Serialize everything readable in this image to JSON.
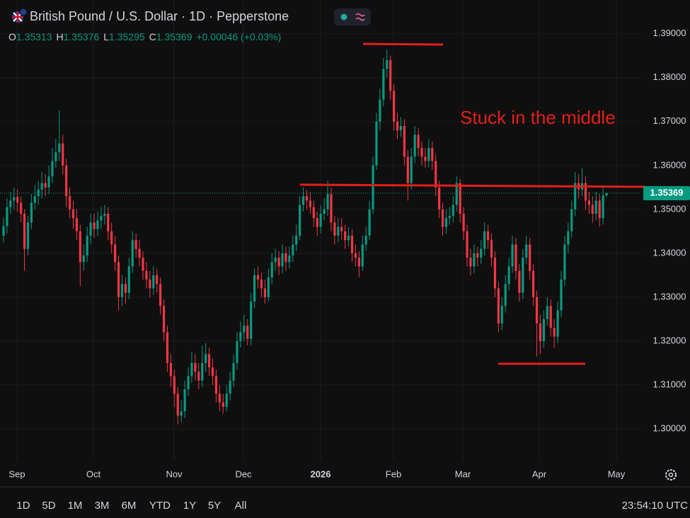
{
  "chart_data": {
    "type": "candlestick",
    "title": "British Pound / U.S. Dollar · 1D · Pepperstone",
    "legend": {
      "items": [
        {
          "label": "O",
          "value": 1.35313
        },
        {
          "label": "H",
          "value": 1.35376
        },
        {
          "label": "L",
          "value": 1.35295
        },
        {
          "label": "C",
          "value": 1.35369
        }
      ],
      "change": "+0.00046 (+0.03%)"
    },
    "annotation": "Stuck in the middle",
    "up_color": "#089981",
    "down_color": "#f23645",
    "ylim": [
      1.2929,
      1.3977
    ],
    "yticks": [
      {
        "value": 1.3,
        "label": "1.30000"
      },
      {
        "value": 1.31,
        "label": "1.31000"
      },
      {
        "value": 1.32,
        "label": "1.32000"
      },
      {
        "value": 1.33,
        "label": "1.33000"
      },
      {
        "value": 1.34,
        "label": "1.34000"
      },
      {
        "value": 1.35,
        "label": "1.35000"
      },
      {
        "value": 1.36,
        "label": "1.36000"
      },
      {
        "value": 1.37,
        "label": "1.37000"
      },
      {
        "value": 1.38,
        "label": "1.38000"
      },
      {
        "value": 1.39,
        "label": "1.39000"
      }
    ],
    "xticks": [
      "Sep",
      "Oct",
      "Nov",
      "Dec",
      "2026",
      "Feb",
      "Mar",
      "Apr",
      "May"
    ],
    "grid": true,
    "open": [
      1.344,
      1.3462,
      1.3505,
      1.352,
      1.3528,
      1.3515,
      1.349,
      1.341,
      1.347,
      1.3515,
      1.353,
      1.3545,
      1.356,
      1.355,
      1.3575,
      1.361,
      1.363,
      1.365,
      1.36,
      1.353,
      1.35,
      1.348,
      1.345,
      1.338,
      1.3395,
      1.344,
      1.347,
      1.3455,
      1.3475,
      1.3485,
      1.349,
      1.345,
      1.342,
      1.338,
      1.33,
      1.333,
      1.331,
      1.337,
      1.343,
      1.341,
      1.339,
      1.336,
      1.334,
      1.332,
      1.335,
      1.333,
      1.328,
      1.322,
      1.315,
      1.312,
      1.308,
      1.303,
      1.304,
      1.309,
      1.312,
      1.315,
      1.313,
      1.311,
      1.315,
      1.317,
      1.314,
      1.312,
      1.308,
      1.306,
      1.305,
      1.308,
      1.311,
      1.315,
      1.32,
      1.322,
      1.3235,
      1.3205,
      1.329,
      1.335,
      1.334,
      1.332,
      1.33,
      1.3345,
      1.338,
      1.339,
      1.337,
      1.34,
      1.338,
      1.3395,
      1.342,
      1.344,
      1.351,
      1.353,
      1.352,
      1.3505,
      1.348,
      1.346,
      1.349,
      1.35,
      1.3535,
      1.347,
      1.344,
      1.346,
      1.345,
      1.343,
      1.344,
      1.34,
      1.339,
      1.337,
      1.342,
      1.344,
      1.35,
      1.36,
      1.37,
      1.375,
      1.382,
      1.384,
      1.377,
      1.37,
      1.368,
      1.369,
      1.362,
      1.356,
      1.362,
      1.367,
      1.364,
      1.362,
      1.361,
      1.364,
      1.361,
      1.355,
      1.35,
      1.346,
      1.348,
      1.3485,
      1.351,
      1.356,
      1.349,
      1.345,
      1.339,
      1.337,
      1.34,
      1.339,
      1.341,
      1.345,
      1.343,
      1.339,
      1.332,
      1.324,
      1.328,
      1.333,
      1.337,
      1.342,
      1.336,
      1.331,
      1.339,
      1.342,
      1.336,
      1.33,
      1.324,
      1.32,
      1.325,
      1.328,
      1.323,
      1.321,
      1.327,
      1.334,
      1.342,
      1.345,
      1.35,
      1.356,
      1.3545,
      1.356,
      1.352,
      1.351,
      1.349,
      1.352,
      1.348,
      1.35313
    ],
    "high": [
      1.348,
      1.3525,
      1.354,
      1.355,
      1.3545,
      1.353,
      1.35,
      1.3485,
      1.3535,
      1.3555,
      1.3565,
      1.3585,
      1.358,
      1.36,
      1.364,
      1.366,
      1.3725,
      1.367,
      1.3615,
      1.355,
      1.352,
      1.35,
      1.3465,
      1.342,
      1.346,
      1.349,
      1.349,
      1.3495,
      1.3505,
      1.351,
      1.3505,
      1.347,
      1.344,
      1.3395,
      1.335,
      1.3345,
      1.339,
      1.345,
      1.3445,
      1.343,
      1.3405,
      1.338,
      1.336,
      1.337,
      1.3365,
      1.3345,
      1.3295,
      1.3235,
      1.317,
      1.3135,
      1.3095,
      1.3065,
      1.311,
      1.314,
      1.3175,
      1.317,
      1.315,
      1.319,
      1.3195,
      1.3185,
      1.316,
      1.3135,
      1.31,
      1.308,
      1.31,
      1.313,
      1.317,
      1.322,
      1.3245,
      1.326,
      1.325,
      1.331,
      1.3365,
      1.337,
      1.3355,
      1.334,
      1.3365,
      1.34,
      1.341,
      1.3405,
      1.342,
      1.3415,
      1.3415,
      1.344,
      1.3465,
      1.353,
      1.355,
      1.3545,
      1.354,
      1.352,
      1.3495,
      1.351,
      1.3525,
      1.3565,
      1.355,
      1.3485,
      1.348,
      1.348,
      1.3465,
      1.346,
      1.3455,
      1.342,
      1.3405,
      1.344,
      1.346,
      1.352,
      1.362,
      1.372,
      1.3775,
      1.3845,
      1.3865,
      1.385,
      1.3785,
      1.372,
      1.371,
      1.3705,
      1.3635,
      1.364,
      1.369,
      1.3685,
      1.3655,
      1.364,
      1.366,
      1.3655,
      1.3625,
      1.3565,
      1.3515,
      1.35,
      1.3505,
      1.353,
      1.3575,
      1.357,
      1.3505,
      1.3465,
      1.341,
      1.342,
      1.3415,
      1.343,
      1.347,
      1.3465,
      1.3445,
      1.3405,
      1.3335,
      1.33,
      1.335,
      1.339,
      1.344,
      1.3435,
      1.3375,
      1.341,
      1.344,
      1.3435,
      1.3375,
      1.3315,
      1.326,
      1.327,
      1.33,
      1.3295,
      1.325,
      1.329,
      1.336,
      1.344,
      1.347,
      1.352,
      1.3585,
      1.358,
      1.3595,
      1.3575,
      1.354,
      1.353,
      1.354,
      1.3535,
      1.355,
      1.35376
    ],
    "low": [
      1.3425,
      1.3445,
      1.349,
      1.35,
      1.3495,
      1.347,
      1.336,
      1.3395,
      1.3455,
      1.35,
      1.351,
      1.3525,
      1.353,
      1.3535,
      1.356,
      1.3595,
      1.361,
      1.358,
      1.3505,
      1.348,
      1.3455,
      1.343,
      1.3325,
      1.336,
      1.338,
      1.342,
      1.3435,
      1.344,
      1.3455,
      1.3465,
      1.343,
      1.34,
      1.336,
      1.327,
      1.328,
      1.3285,
      1.3295,
      1.3355,
      1.339,
      1.337,
      1.334,
      1.332,
      1.33,
      1.3305,
      1.331,
      1.326,
      1.32,
      1.313,
      1.3095,
      1.305,
      1.301,
      1.3015,
      1.3025,
      1.3075,
      1.3105,
      1.311,
      1.309,
      1.3095,
      1.313,
      1.312,
      1.31,
      1.306,
      1.304,
      1.3035,
      1.304,
      1.3065,
      1.3095,
      1.3135,
      1.3185,
      1.32,
      1.319,
      1.319,
      1.3275,
      1.332,
      1.33,
      1.3285,
      1.329,
      1.333,
      1.336,
      1.335,
      1.3355,
      1.336,
      1.3365,
      1.338,
      1.3405,
      1.343,
      1.3495,
      1.35,
      1.349,
      1.346,
      1.344,
      1.3445,
      1.3475,
      1.3485,
      1.345,
      1.342,
      1.3425,
      1.343,
      1.341,
      1.3415,
      1.338,
      1.337,
      1.3345,
      1.336,
      1.3405,
      1.343,
      1.349,
      1.359,
      1.368,
      1.3735,
      1.38,
      1.375,
      1.368,
      1.366,
      1.3665,
      1.36,
      1.352,
      1.3545,
      1.3605,
      1.362,
      1.36,
      1.3595,
      1.3595,
      1.359,
      1.353,
      1.348,
      1.344,
      1.3445,
      1.3465,
      1.347,
      1.3495,
      1.347,
      1.343,
      1.337,
      1.335,
      1.3355,
      1.337,
      1.3375,
      1.3395,
      1.341,
      1.337,
      1.33,
      1.322,
      1.3225,
      1.3265,
      1.3315,
      1.3355,
      1.334,
      1.329,
      1.3295,
      1.3375,
      1.334,
      1.328,
      1.3165,
      1.317,
      1.3185,
      1.3235,
      1.321,
      1.3185,
      1.3195,
      1.3255,
      1.3325,
      1.34,
      1.3435,
      1.3485,
      1.3525,
      1.353,
      1.35,
      1.349,
      1.347,
      1.3475,
      1.346,
      1.3465,
      1.35295
    ],
    "close": [
      1.3462,
      1.3505,
      1.352,
      1.3528,
      1.3515,
      1.349,
      1.341,
      1.347,
      1.3515,
      1.353,
      1.3545,
      1.356,
      1.355,
      1.3575,
      1.361,
      1.363,
      1.365,
      1.36,
      1.353,
      1.35,
      1.348,
      1.345,
      1.338,
      1.3395,
      1.344,
      1.347,
      1.3455,
      1.3475,
      1.3485,
      1.349,
      1.345,
      1.342,
      1.338,
      1.33,
      1.333,
      1.331,
      1.337,
      1.343,
      1.341,
      1.339,
      1.336,
      1.334,
      1.332,
      1.335,
      1.333,
      1.328,
      1.322,
      1.315,
      1.312,
      1.308,
      1.303,
      1.304,
      1.309,
      1.312,
      1.315,
      1.313,
      1.311,
      1.315,
      1.317,
      1.314,
      1.312,
      1.308,
      1.306,
      1.305,
      1.308,
      1.311,
      1.315,
      1.32,
      1.322,
      1.3235,
      1.3205,
      1.329,
      1.335,
      1.334,
      1.332,
      1.33,
      1.3345,
      1.338,
      1.339,
      1.337,
      1.34,
      1.338,
      1.3395,
      1.342,
      1.344,
      1.351,
      1.353,
      1.352,
      1.3505,
      1.348,
      1.346,
      1.349,
      1.35,
      1.3535,
      1.347,
      1.344,
      1.346,
      1.345,
      1.343,
      1.344,
      1.34,
      1.339,
      1.337,
      1.342,
      1.344,
      1.35,
      1.36,
      1.37,
      1.375,
      1.382,
      1.384,
      1.377,
      1.37,
      1.368,
      1.369,
      1.362,
      1.356,
      1.362,
      1.367,
      1.364,
      1.362,
      1.361,
      1.364,
      1.361,
      1.355,
      1.35,
      1.346,
      1.348,
      1.3485,
      1.351,
      1.356,
      1.349,
      1.345,
      1.339,
      1.337,
      1.34,
      1.339,
      1.341,
      1.345,
      1.343,
      1.339,
      1.332,
      1.324,
      1.328,
      1.333,
      1.337,
      1.342,
      1.336,
      1.331,
      1.339,
      1.342,
      1.336,
      1.33,
      1.324,
      1.32,
      1.325,
      1.328,
      1.323,
      1.321,
      1.327,
      1.334,
      1.342,
      1.345,
      1.35,
      1.356,
      1.3545,
      1.356,
      1.352,
      1.351,
      1.349,
      1.352,
      1.348,
      1.35313,
      1.35369
    ]
  },
  "toolbar": {
    "ranges": [
      "1D",
      "5D",
      "1M",
      "3M",
      "6M",
      "YTD",
      "1Y",
      "5Y",
      "All"
    ],
    "time": "23:54:10 UTC"
  }
}
